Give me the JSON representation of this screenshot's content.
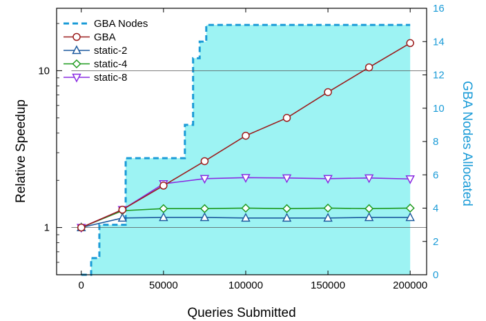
{
  "chart_data": {
    "type": "line",
    "xlabel": "Queries Submitted",
    "ylabel": "Relative Speedup",
    "y2label": "GBA Nodes Allocated",
    "xlim": [
      -15000,
      210000
    ],
    "ylim": [
      0.5,
      25
    ],
    "yscale": "log",
    "y2lim": [
      0,
      16
    ],
    "x_ticks": [
      0,
      50000,
      100000,
      150000,
      200000
    ],
    "x_tick_labels": [
      "0",
      "50000",
      "100000",
      "150000",
      "200000"
    ],
    "y_ticks": [
      1,
      10
    ],
    "y_tick_labels": [
      "1",
      "10"
    ],
    "y2_ticks": [
      0,
      2,
      4,
      6,
      8,
      10,
      12,
      14,
      16
    ],
    "y2_tick_labels": [
      "0",
      "2",
      "4",
      "6",
      "8",
      "10",
      "12",
      "14",
      "16"
    ],
    "reference_lines": [
      1,
      10
    ],
    "legend_position": "top-left",
    "gba_nodes": {
      "name": "GBA Nodes",
      "axis": "right",
      "color": "#1a9bd7",
      "fill": "#9df3f3",
      "step_x": [
        0,
        6000,
        6000,
        11000,
        11000,
        27000,
        27000,
        63000,
        63000,
        68000,
        68000,
        72000,
        72000,
        76000,
        76000,
        200000
      ],
      "step_y": [
        0,
        0,
        1,
        1,
        3,
        3,
        7,
        7,
        9,
        9,
        13,
        13,
        14,
        14,
        15,
        15
      ]
    },
    "series": [
      {
        "name": "GBA",
        "color": "#9b1c1c",
        "marker": "circle",
        "x": [
          0,
          25000,
          50000,
          75000,
          100000,
          125000,
          150000,
          175000,
          200000
        ],
        "values": [
          1.0,
          1.3,
          1.85,
          2.65,
          3.85,
          5.0,
          7.3,
          10.5,
          15.0
        ]
      },
      {
        "name": "static-2",
        "color": "#1d5a9e",
        "marker": "triangle-up",
        "x": [
          0,
          25000,
          50000,
          75000,
          100000,
          125000,
          150000,
          175000,
          200000
        ],
        "values": [
          1.0,
          1.15,
          1.16,
          1.16,
          1.15,
          1.15,
          1.15,
          1.16,
          1.16
        ]
      },
      {
        "name": "static-4",
        "color": "#1e9a1e",
        "marker": "diamond",
        "x": [
          0,
          25000,
          50000,
          75000,
          100000,
          125000,
          150000,
          175000,
          200000
        ],
        "values": [
          1.0,
          1.28,
          1.32,
          1.32,
          1.33,
          1.32,
          1.33,
          1.32,
          1.33
        ]
      },
      {
        "name": "static-8",
        "color": "#8a2be2",
        "marker": "triangle-down",
        "x": [
          0,
          25000,
          50000,
          75000,
          100000,
          125000,
          150000,
          175000,
          200000
        ],
        "values": [
          1.0,
          1.3,
          1.9,
          2.05,
          2.08,
          2.07,
          2.05,
          2.07,
          2.04
        ]
      }
    ]
  }
}
